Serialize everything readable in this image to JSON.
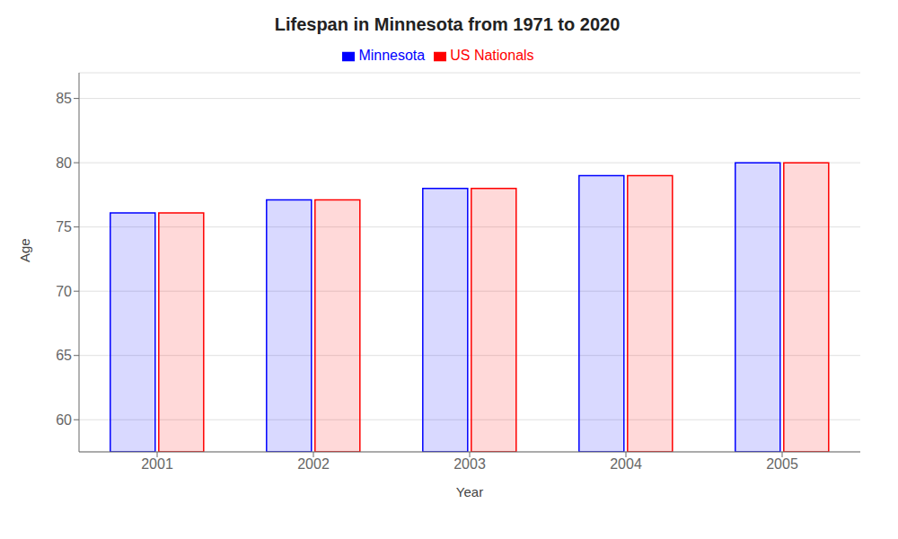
{
  "chart_data": {
    "type": "bar",
    "title": "Lifespan in Minnesota from 1971 to 2020",
    "x_label": "Year",
    "y_label": "Age",
    "categories": [
      "2001",
      "2002",
      "2003",
      "2004",
      "2005"
    ],
    "series": [
      {
        "name": "Minnesota",
        "color": "#0000ff",
        "values": [
          76.1,
          77.1,
          78.0,
          79.0,
          80.0
        ]
      },
      {
        "name": "US Nationals",
        "color": "#ff0000",
        "values": [
          76.1,
          77.1,
          78.0,
          79.0,
          80.0
        ]
      }
    ],
    "ylim": [
      57.5,
      87
    ],
    "yticks": [
      60,
      65,
      70,
      75,
      80,
      85
    ],
    "grid": true,
    "legend": "top"
  }
}
